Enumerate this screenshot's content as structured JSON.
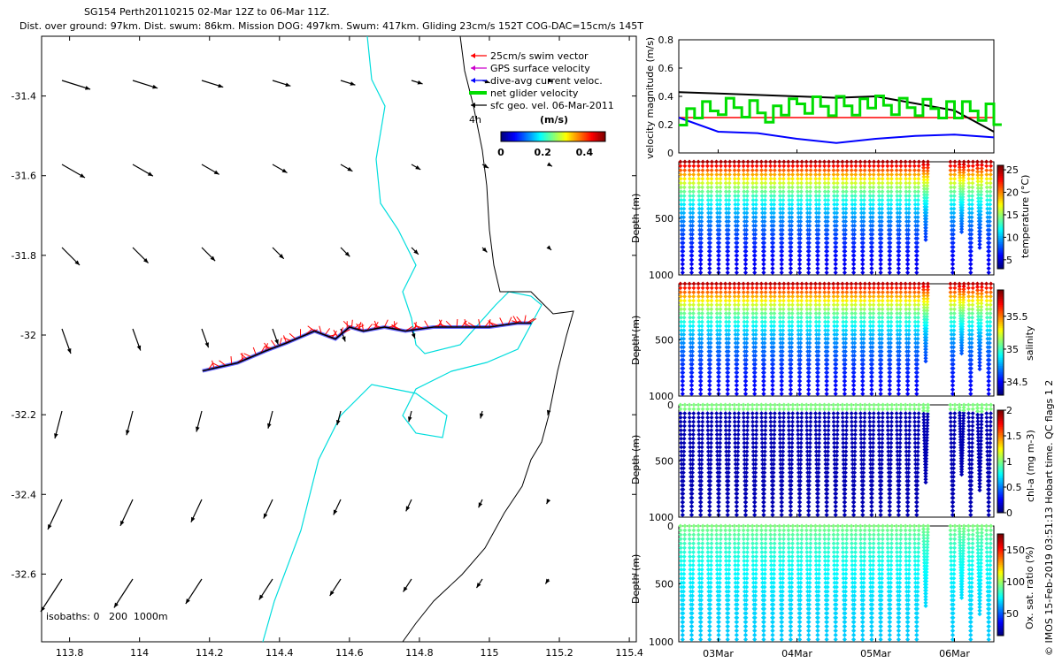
{
  "figure": {
    "title_line1": "SG154 Perth20110215 02-Mar 12Z to 06-Mar 11Z.",
    "title_line2": "Dist. over ground: 97km. Dist. swum: 86km. Mission DOG: 497km. Swum: 417km. Gliding 23cm/s 152T COG-DAC=15cm/s 145T",
    "copyright": "© IMOS 15-Feb-2019 03:51:13 Hobart time. QC flags 1 2"
  },
  "chart_data": [
    {
      "type": "map",
      "name": "trajectory-map",
      "x_ticks": [
        113.8,
        114,
        114.2,
        114.4,
        114.6,
        114.8,
        115,
        115.2,
        115.4
      ],
      "x_tick_labels": [
        "113.8",
        "114",
        "114.2",
        "114.4",
        "114.6",
        "114.8",
        "115",
        "115.2",
        "115.4"
      ],
      "y_ticks": [
        -31.4,
        -31.6,
        -31.8,
        -32,
        -32.2,
        -32.4,
        -32.6
      ],
      "y_tick_labels": [
        "-31.4",
        "-31.6",
        "-31.8",
        "-32",
        "-32.2",
        "-32.4",
        "-32.6"
      ],
      "xlim": [
        113.72,
        115.42
      ],
      "ylim": [
        -32.77,
        -31.25
      ],
      "legend": [
        {
          "label": "25cm/s swim vector",
          "color": "#ff0000"
        },
        {
          "label": "GPS surface velocity",
          "color": "#cc00cc"
        },
        {
          "label": "dive-avg current veloc.",
          "color": "#0000ff"
        },
        {
          "label": "net glider velocity",
          "color": "#00dd00"
        },
        {
          "label": "sfc geo. vel. 06-Mar-2011",
          "color": "#000000"
        }
      ],
      "legend_extra": "4h",
      "colorbar": {
        "label": "(m/s)",
        "ticks": [
          "0",
          "0.2",
          "0.4"
        ],
        "range": [
          0,
          0.5
        ]
      },
      "isobaths_label": "isobaths: 0   200  1000m",
      "track": {
        "lon": [
          114.18,
          114.28,
          114.36,
          114.42,
          114.5,
          114.56,
          114.6,
          114.64,
          114.7,
          114.76,
          114.84,
          114.92,
          115,
          115.08,
          115.12
        ],
        "lat": [
          -32.09,
          -32.07,
          -32.04,
          -32.02,
          -31.99,
          -32.01,
          -31.98,
          -31.99,
          -31.98,
          -31.99,
          -31.98,
          -31.98,
          -31.98,
          -31.97,
          -31.97
        ]
      },
      "geostrophic_vectors": {
        "lon": [
          113.8,
          113.94,
          114.08,
          114.22,
          114.36,
          114.5,
          114.64,
          114.78,
          114.92,
          115.06,
          115.2,
          115.34
        ],
        "lat": [
          -31.4,
          -31.6,
          -31.8,
          -32.0,
          -32.2,
          -32.4,
          -32.6
        ],
        "u": [
          0.11,
          0.11,
          0.09,
          0.08,
          0.07,
          0.03,
          -0.04,
          -0.08,
          -0.12,
          -0.15,
          -0.18,
          -0.2
        ],
        "v": [
          -0.06,
          -0.08,
          -0.1,
          -0.12,
          -0.14,
          -0.17,
          -0.2
        ]
      }
    },
    {
      "type": "line",
      "name": "velocity-magnitude",
      "ylabel": "velocity magnitude (m/s)",
      "ylim": [
        0,
        0.8
      ],
      "y_ticks": [
        0,
        0.2,
        0.4,
        0.6,
        0.8
      ],
      "y_tick_labels": [
        "0",
        "0.2",
        "0.4",
        "0.6",
        "0.8"
      ],
      "x_days": [
        0,
        0.5,
        1,
        1.5,
        2,
        2.5,
        3,
        3.5,
        4
      ],
      "series": [
        {
          "name": "swim vector",
          "color": "#ff0000",
          "values": [
            0.25,
            0.25,
            0.25,
            0.25,
            0.25,
            0.25,
            0.25,
            0.25,
            0.25
          ]
        },
        {
          "name": "sfc geo. vel.",
          "color": "#000000",
          "values": [
            0.43,
            0.42,
            0.41,
            0.4,
            0.39,
            0.4,
            0.35,
            0.3,
            0.15
          ]
        },
        {
          "name": "dive-avg current",
          "color": "#0000ff",
          "values": [
            0.25,
            0.15,
            0.14,
            0.1,
            0.07,
            0.1,
            0.12,
            0.13,
            0.11
          ]
        },
        {
          "name": "net glider velocity",
          "color": "#00dd00",
          "values": [
            0.28,
            0.32,
            0.3,
            0.33,
            0.35,
            0.32,
            0.33,
            0.28,
            0.2
          ]
        }
      ]
    },
    {
      "type": "scatter",
      "name": "temperature-section",
      "ylabel": "Depth (m)",
      "y_ticks": [
        500,
        1000
      ],
      "y_tick_labels": [
        "500",
        "1000"
      ],
      "ylim": [
        0,
        1000
      ],
      "colorbar_label": "temperature (°C)",
      "colorbar_ticks": [
        "5",
        "10",
        "15",
        "20",
        "25"
      ],
      "crange": [
        3,
        26
      ],
      "surface": 25,
      "deep": 4
    },
    {
      "type": "scatter",
      "name": "salinity-section",
      "ylabel": "Depth (m)",
      "y_ticks": [
        500,
        1000
      ],
      "y_tick_labels": [
        "500",
        "1000"
      ],
      "ylim": [
        0,
        1000
      ],
      "colorbar_label": "salinity",
      "colorbar_ticks": [
        "34.5",
        "35",
        "35.5"
      ],
      "crange": [
        34.3,
        35.9
      ],
      "surface": 35.8,
      "deep": 34.4
    },
    {
      "type": "scatter",
      "name": "chl-a-section",
      "ylabel": "Depth (m)",
      "y_ticks": [
        0,
        500,
        1000
      ],
      "y_tick_labels": [
        "0",
        "500",
        "1000"
      ],
      "ylim": [
        0,
        1000
      ],
      "colorbar_label": "chl-a (mg m-3)",
      "colorbar_ticks": [
        "0",
        "0.5",
        "1",
        "1.5",
        "2"
      ],
      "crange": [
        0,
        2
      ],
      "surface": 0.4,
      "deep": 0.05
    },
    {
      "type": "scatter",
      "name": "oxygen-section",
      "ylabel": "Depth (m)",
      "y_ticks": [
        0,
        500,
        1000
      ],
      "y_tick_labels": [
        "0",
        "500",
        "1000"
      ],
      "ylim": [
        0,
        1000
      ],
      "colorbar_label": "Ox. sat. ratio (%)",
      "colorbar_ticks": [
        "50",
        "100",
        "150"
      ],
      "crange": [
        15,
        175
      ],
      "surface": 95,
      "deep": 65
    }
  ],
  "time_axis": {
    "tick_labels": [
      "03Mar",
      "04Mar",
      "05Mar",
      "06Mar"
    ],
    "tick_days": [
      0.5,
      1.5,
      2.5,
      3.5
    ],
    "xlim_days": [
      0,
      4
    ],
    "dive_count": 35,
    "gap_days": [
      [
        3.12,
        3.36
      ]
    ]
  },
  "colors": {
    "coast": "#00dddd",
    "black": "#000000",
    "frame": "#000000"
  }
}
